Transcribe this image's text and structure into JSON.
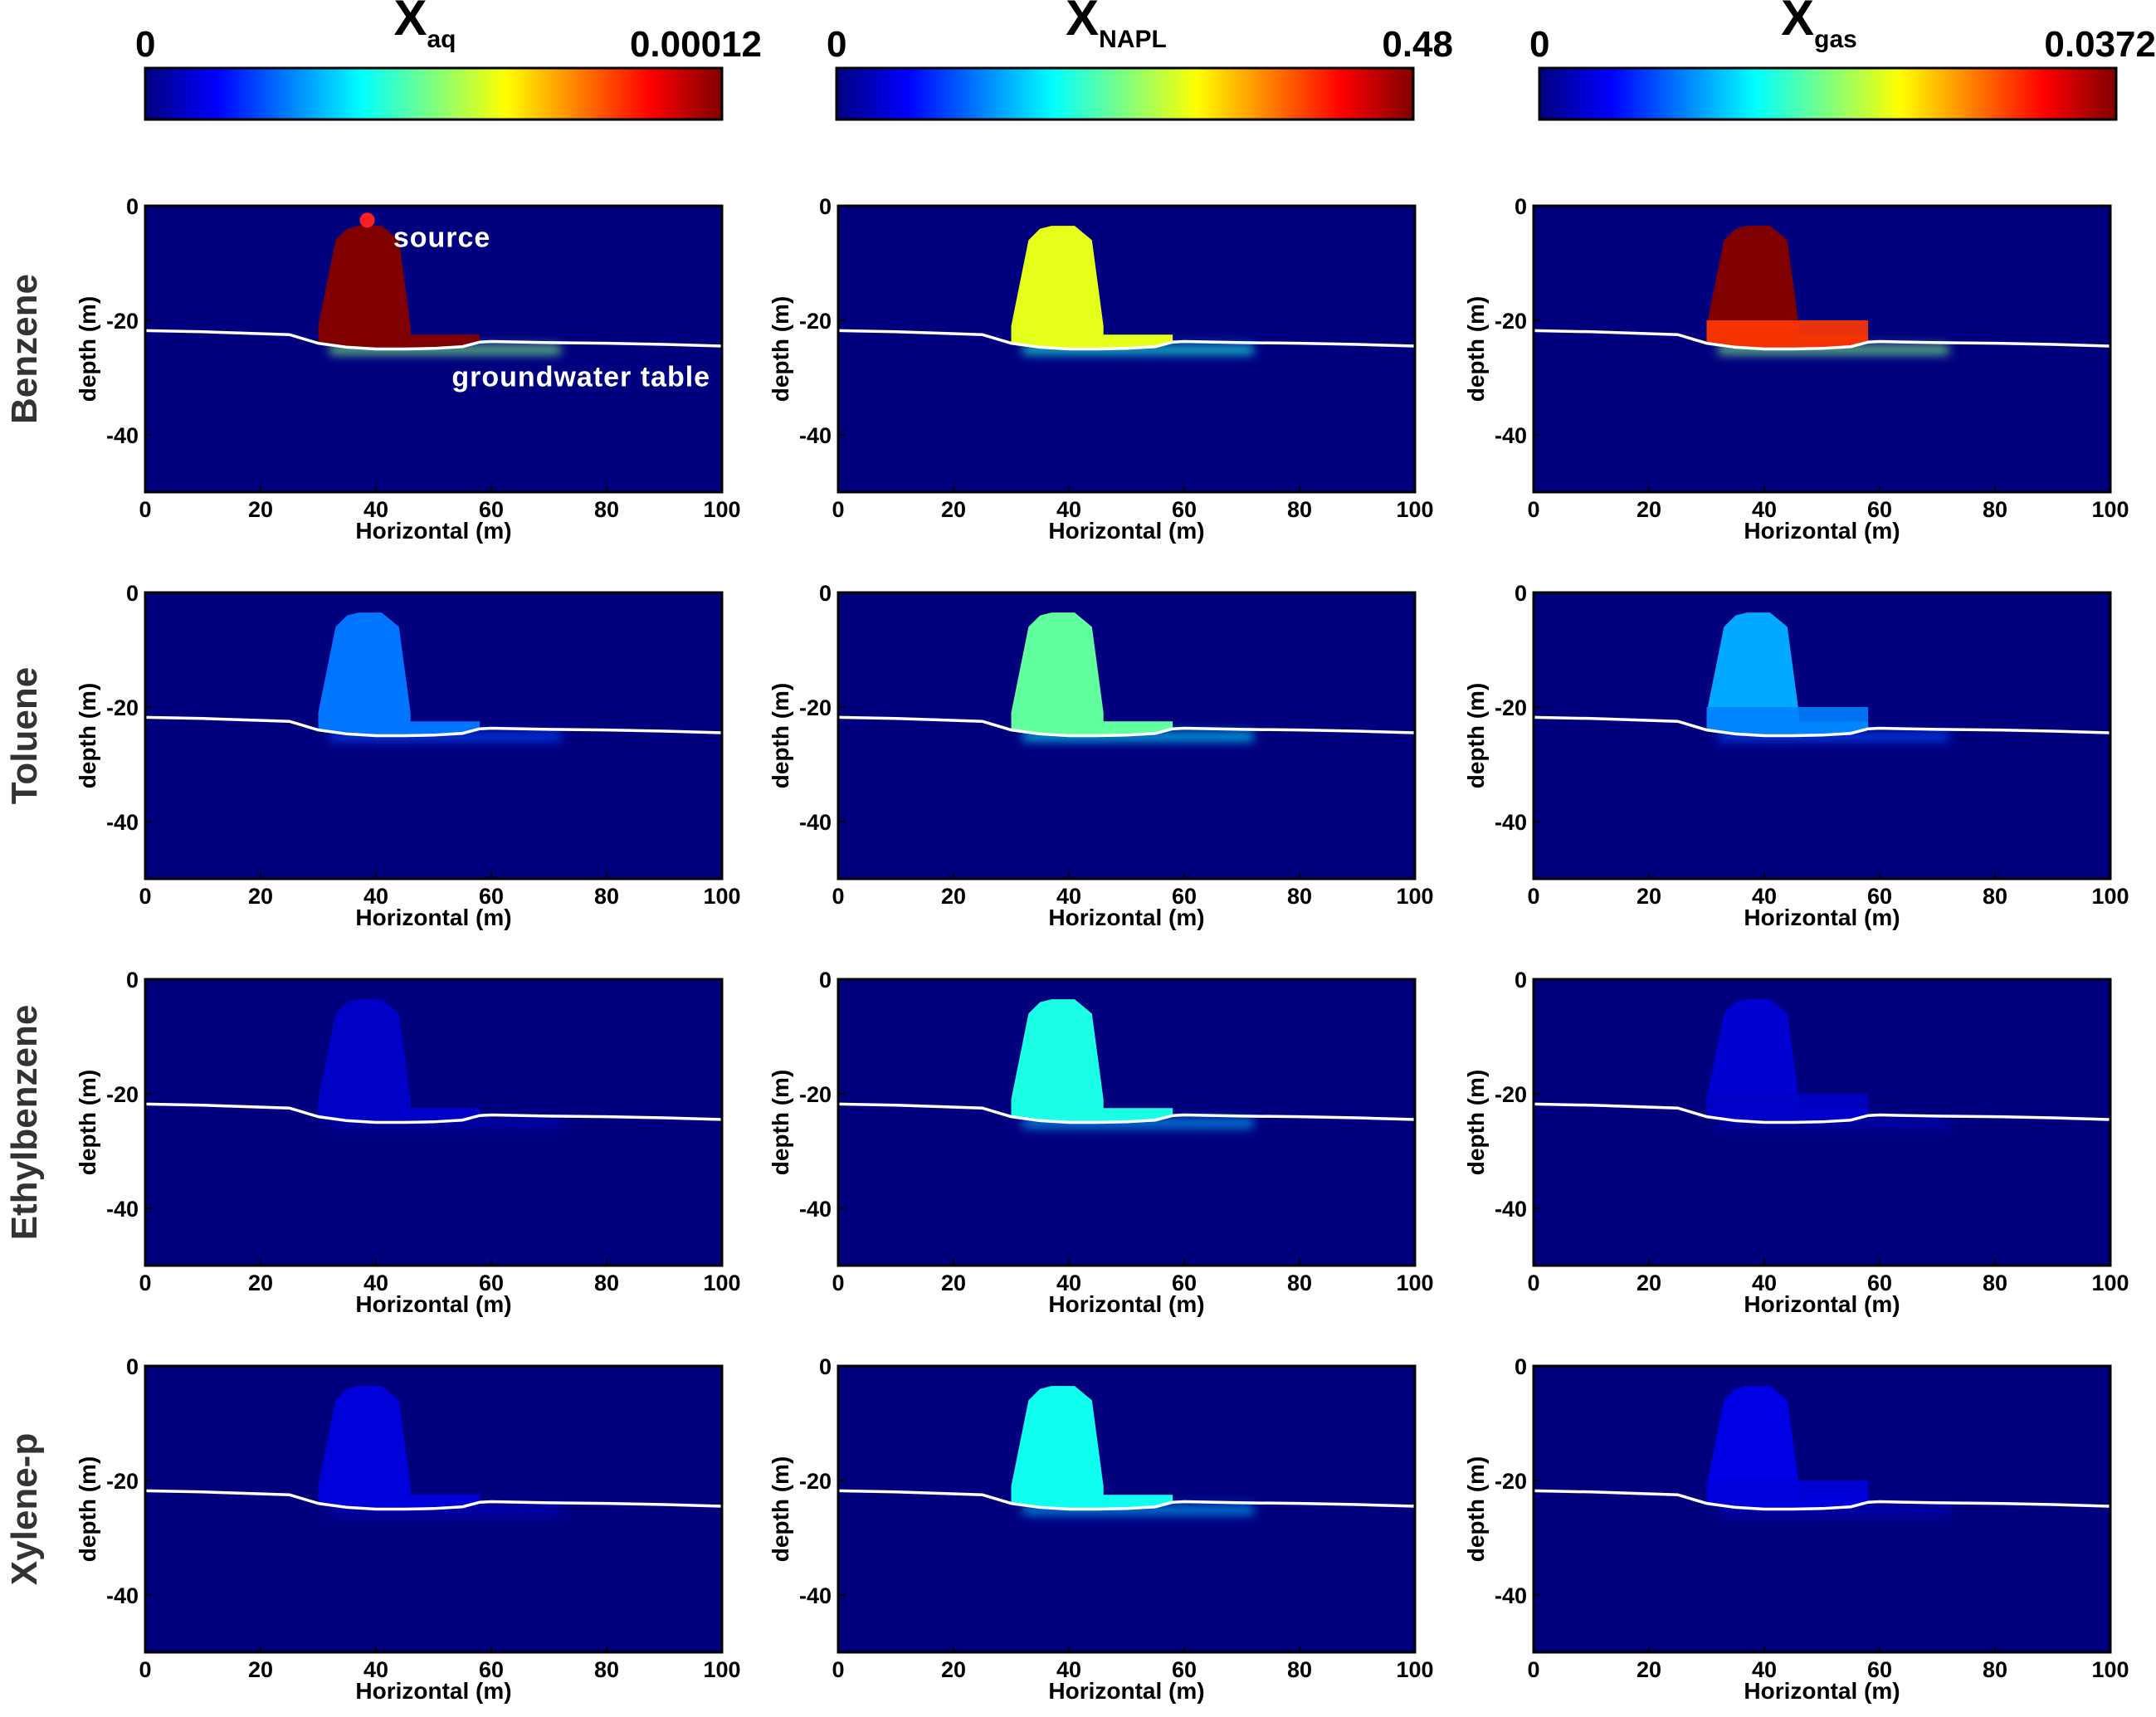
{
  "colors": {
    "background": "#00007f",
    "water_table_line": "#ffffff",
    "colormap": [
      "#00007f",
      "#0000ff",
      "#007fff",
      "#00ffff",
      "#7fff7f",
      "#ffff00",
      "#ff7f00",
      "#ff0000",
      "#7f0000"
    ]
  },
  "colorbars": [
    {
      "symbol": "X",
      "subscript": "aq",
      "min_label": "0",
      "max_label": "0.00012",
      "colormap": "jet"
    },
    {
      "symbol": "X",
      "subscript": "NAPL",
      "min_label": "0",
      "max_label": "0.48",
      "colormap": "jet"
    },
    {
      "symbol": "X",
      "subscript": "gas",
      "min_label": "0",
      "max_label": "0.0372",
      "colormap": "jet"
    }
  ],
  "rows": [
    "Benzene",
    "Toluene",
    "Ethylbenzene",
    "Xylene-p"
  ],
  "axes": {
    "xlabel": "Horizontal (m)",
    "ylabel": "depth (m)",
    "xticks": [
      "0",
      "20",
      "40",
      "60",
      "80",
      "100"
    ],
    "yticks": [
      "0",
      "-20",
      "-40"
    ]
  },
  "annotations": {
    "source": "source",
    "water_table": "groundwater table"
  },
  "chart_data": {
    "type": "heatmap",
    "description_units": "normalized level 0-1 of each column's colorbar",
    "xlim": [
      0,
      100
    ],
    "ylim": [
      -50,
      0
    ],
    "grid": false,
    "colormap": "jet",
    "water_table": {
      "x": [
        0,
        10,
        25,
        30,
        35,
        40,
        45,
        50,
        55,
        58,
        60,
        70,
        80,
        90,
        100
      ],
      "depth": [
        -21.8,
        -22.0,
        -22.5,
        -24.0,
        -24.7,
        -25.0,
        -25.0,
        -24.9,
        -24.6,
        -23.8,
        -23.7,
        -23.9,
        -24.0,
        -24.2,
        -24.5
      ]
    },
    "source_body": {
      "dome_x": [
        30,
        33,
        35,
        37,
        41,
        44,
        46
      ],
      "dome_depth": [
        -21,
        -6,
        -4,
        -3.5,
        -3.5,
        -6,
        -21
      ],
      "shelf_x": [
        46,
        58
      ],
      "shelf_top_depth": -22.5
    },
    "panels": [
      {
        "row": "Benzene",
        "column": "aq",
        "body_level": 1.0,
        "plume_level": 0.5,
        "show_source": true
      },
      {
        "row": "Benzene",
        "column": "NAPL",
        "body_level": 0.6,
        "plume_level": 0.4
      },
      {
        "row": "Benzene",
        "column": "gas",
        "body_level": 1.0,
        "lower_level": 0.82,
        "plume_level": 0.5
      },
      {
        "row": "Toluene",
        "column": "aq",
        "body_level": 0.24,
        "plume_level": 0.2
      },
      {
        "row": "Toluene",
        "column": "NAPL",
        "body_level": 0.47,
        "plume_level": 0.35
      },
      {
        "row": "Toluene",
        "column": "gas",
        "body_level": 0.29,
        "lower_level": 0.25,
        "plume_level": 0.2
      },
      {
        "row": "Ethylbenzene",
        "column": "aq",
        "body_level": 0.07,
        "plume_level": 0.06
      },
      {
        "row": "Ethylbenzene",
        "column": "NAPL",
        "body_level": 0.4,
        "plume_level": 0.3
      },
      {
        "row": "Ethylbenzene",
        "column": "gas",
        "body_level": 0.08,
        "lower_level": 0.07,
        "plume_level": 0.06
      },
      {
        "row": "Xylene-p",
        "column": "aq",
        "body_level": 0.09,
        "plume_level": 0.07
      },
      {
        "row": "Xylene-p",
        "column": "NAPL",
        "body_level": 0.39,
        "plume_level": 0.3
      },
      {
        "row": "Xylene-p",
        "column": "gas",
        "body_level": 0.1,
        "lower_level": 0.09,
        "plume_level": 0.07
      }
    ]
  }
}
